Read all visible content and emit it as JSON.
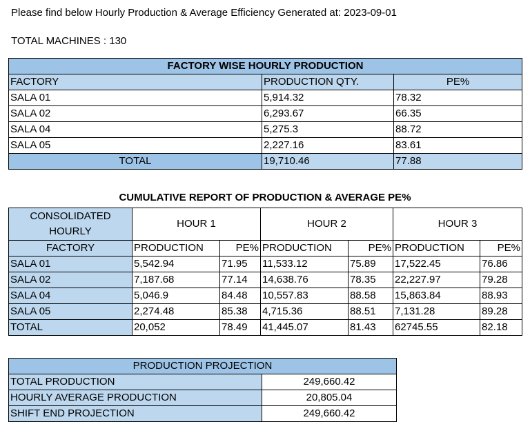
{
  "intro": "Please find below Hourly Production & Average Efficiency Generated at: 2023-09-01",
  "machines": "TOTAL MACHINES : 130",
  "factory_table": {
    "title": "FACTORY WISE HOURLY PRODUCTION",
    "headers": [
      "FACTORY",
      "PRODUCTION QTY.",
      "PE%"
    ],
    "rows": [
      [
        "SALA 01",
        "5,914.32",
        "78.32"
      ],
      [
        "SALA 02",
        "6,293.67",
        "66.35"
      ],
      [
        "SALA 04",
        "5,275.3",
        "88.72"
      ],
      [
        "SALA 05",
        "2,227.16",
        "83.61"
      ]
    ],
    "total": [
      "TOTAL",
      "19,710.46",
      "77.88"
    ]
  },
  "cumulative": {
    "title": "CUMULATIVE REPORT OF PRODUCTION & AVERAGE PE%",
    "consolidated": "CONSOLIDATED HOURLY",
    "hours": [
      "HOUR 1",
      "HOUR 2",
      "HOUR 3"
    ],
    "factory_label": "FACTORY",
    "production_label": "PRODUCTION",
    "pe_label": "PE%",
    "rows": [
      [
        "SALA 01",
        "5,542.94",
        "71.95",
        "11,533.12",
        "75.89",
        "17,522.45",
        "76.86"
      ],
      [
        "SALA 02",
        "7,187.68",
        "77.14",
        "14,638.76",
        "78.35",
        "22,227.97",
        "79.28"
      ],
      [
        "SALA 04",
        "5,046.9",
        "84.48",
        "10,557.83",
        "88.58",
        "15,863.84",
        "88.93"
      ],
      [
        "SALA 05",
        "2,274.48",
        "85.38",
        "4,715.36",
        "88.51",
        "7,131.28",
        "89.28"
      ],
      [
        "TOTAL",
        "20,052",
        "78.49",
        "41,445.07",
        "81.43",
        "62745.55",
        "82.18"
      ]
    ]
  },
  "projection": {
    "title": "PRODUCTION PROJECTION",
    "rows": [
      [
        "TOTAL PRODUCTION",
        "249,660.42"
      ],
      [
        "HOURLY AVERAGE PRODUCTION",
        "20,805.04"
      ],
      [
        "SHIFT END PROJECTION",
        "249,660.42"
      ]
    ]
  },
  "colors": {
    "header_blue": "#9dc3e6",
    "light_blue": "#bdd7ee"
  }
}
